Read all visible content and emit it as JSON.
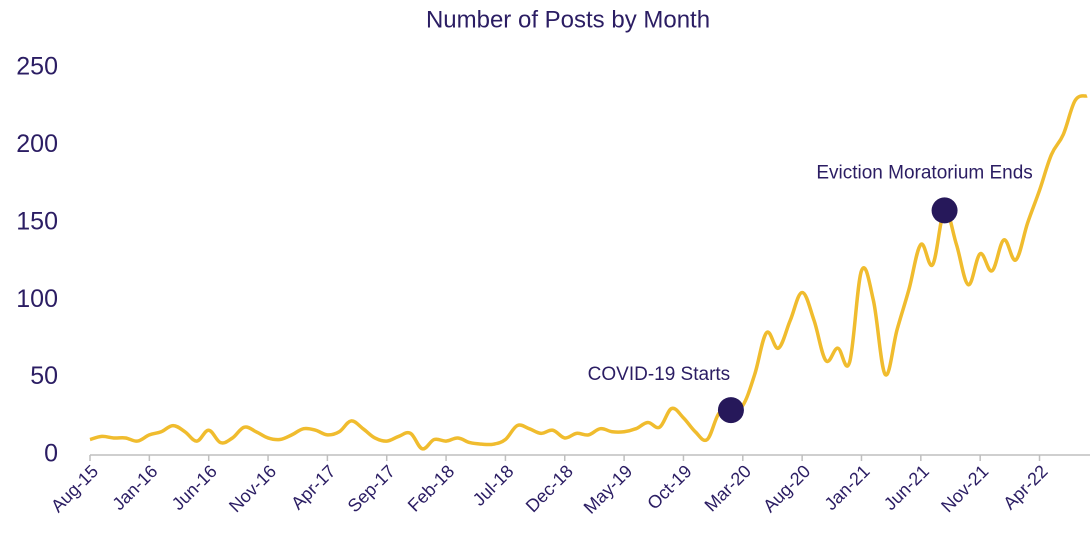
{
  "chart_data": {
    "type": "line",
    "title": "Number of Posts by Month",
    "categories": [
      "Aug-15",
      null,
      null,
      null,
      null,
      "Jan-16",
      null,
      null,
      null,
      null,
      "Jun-16",
      null,
      null,
      null,
      null,
      "Nov-16",
      null,
      null,
      null,
      null,
      "Apr-17",
      null,
      null,
      null,
      null,
      "Sep-17",
      null,
      null,
      null,
      null,
      "Feb-18",
      null,
      null,
      null,
      null,
      "Jul-18",
      null,
      null,
      null,
      null,
      "Dec-18",
      null,
      null,
      null,
      null,
      "May-19",
      null,
      null,
      null,
      null,
      "Oct-19",
      null,
      null,
      null,
      null,
      "Mar-20",
      null,
      null,
      null,
      null,
      "Aug-20",
      null,
      null,
      null,
      null,
      "Jan-21",
      null,
      null,
      null,
      null,
      "Jun-21",
      null,
      null,
      null,
      null,
      "Nov-21",
      null,
      null,
      null,
      null,
      "Apr-22",
      null,
      null,
      null,
      null
    ],
    "series": [
      {
        "name": "Posts",
        "color": "#f0bc2e",
        "values": [
          10,
          12,
          11,
          11,
          9,
          13,
          15,
          19,
          15,
          9,
          16,
          8,
          11,
          18,
          15,
          11,
          10,
          13,
          17,
          16,
          13,
          15,
          22,
          17,
          11,
          9,
          12,
          14,
          4,
          10,
          9,
          11,
          8,
          7,
          7,
          10,
          19,
          17,
          14,
          16,
          11,
          14,
          13,
          17,
          15,
          15,
          17,
          21,
          18,
          30,
          24,
          15,
          10,
          27,
          29,
          32,
          52,
          79,
          69,
          87,
          105,
          87,
          61,
          69,
          60,
          119,
          100,
          52,
          81,
          107,
          136,
          123,
          158,
          136,
          110,
          130,
          119,
          139,
          126,
          150,
          171,
          194,
          207,
          229,
          232
        ]
      }
    ],
    "annotations": [
      {
        "text": "COVID-19 Starts",
        "index": 54
      },
      {
        "text": "Eviction Moratorium Ends",
        "index": 72
      }
    ],
    "marker_color": "#26185a",
    "ylim": [
      0,
      250
    ],
    "yticks": [
      0,
      50,
      100,
      150,
      200,
      250
    ],
    "grid": false
  }
}
